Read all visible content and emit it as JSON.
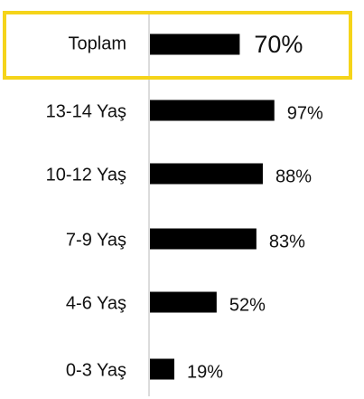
{
  "chart_data": {
    "type": "bar",
    "orientation": "horizontal",
    "categories": [
      "Toplam",
      "13-14 Yaş",
      "10-12 Yaş",
      "7-9 Yaş",
      "4-6 Yaş",
      "0-3 Yaş"
    ],
    "values": [
      70,
      97,
      88,
      83,
      52,
      19
    ],
    "value_labels": [
      "70%",
      "97%",
      "88%",
      "83%",
      "52%",
      "19%"
    ],
    "color": "#000000"
  }
}
